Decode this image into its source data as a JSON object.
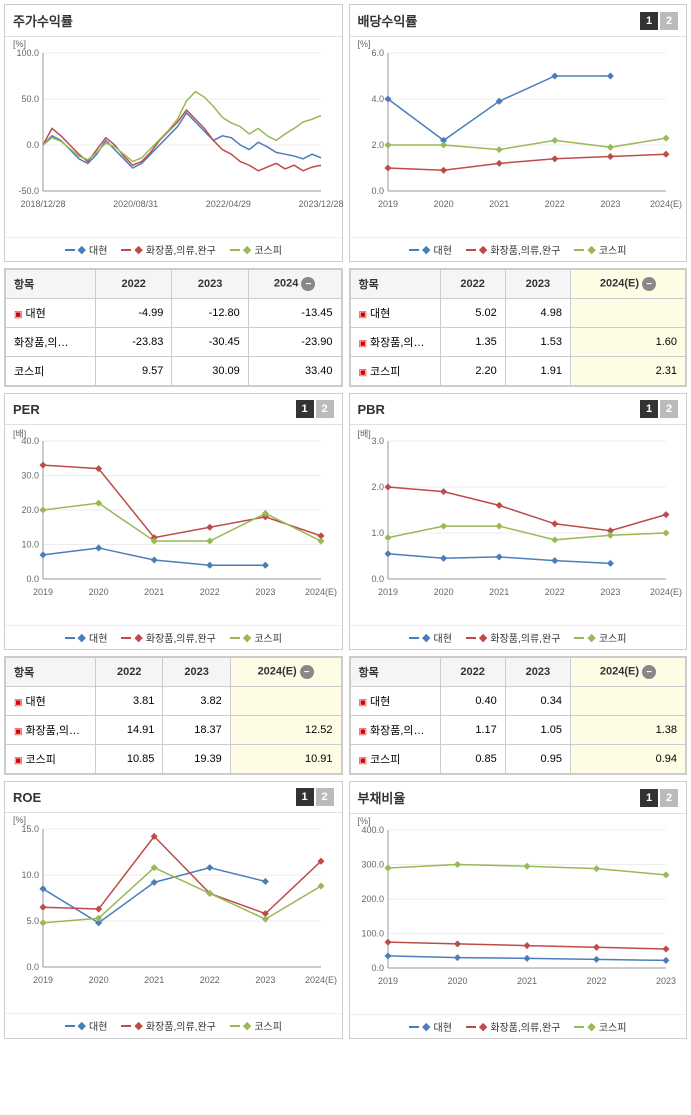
{
  "colors": {
    "s1": "#4a7ebb",
    "s2": "#be4b48",
    "s3": "#98b954",
    "grid": "#eeeeee",
    "axis": "#999999",
    "bg": "#ffffff",
    "est": "#fffce6"
  },
  "legend": [
    "대현",
    "화장품,의류,완구",
    "코스피"
  ],
  "years": [
    "2019",
    "2020",
    "2021",
    "2022",
    "2023",
    "2024(E)"
  ],
  "panels": {
    "p1": {
      "title": "주가수익률",
      "ylabel": "[%]",
      "ylim": [
        -50,
        100
      ],
      "yticks": [
        -50,
        0,
        50,
        100
      ],
      "xlabels": [
        "2018/12/28",
        "2020/08/31",
        "2022/04/29",
        "2023/12/28"
      ],
      "dense": true,
      "s1": [
        0,
        10,
        5,
        -5,
        -15,
        -20,
        -10,
        5,
        -5,
        -15,
        -25,
        -20,
        -10,
        0,
        10,
        20,
        35,
        25,
        15,
        5,
        10,
        8,
        0,
        -5,
        3,
        -2,
        -8,
        -10,
        -12,
        -15,
        -10,
        -14
      ],
      "s2": [
        0,
        18,
        10,
        0,
        -10,
        -18,
        -5,
        8,
        0,
        -12,
        -22,
        -18,
        -8,
        5,
        15,
        25,
        38,
        28,
        18,
        5,
        -5,
        -10,
        -18,
        -22,
        -28,
        -24,
        -20,
        -26,
        -22,
        -28,
        -24,
        -22
      ],
      "s3": [
        0,
        8,
        4,
        -4,
        -12,
        -16,
        -8,
        2,
        -2,
        -10,
        -18,
        -14,
        -4,
        6,
        16,
        28,
        48,
        58,
        52,
        42,
        30,
        24,
        20,
        12,
        18,
        10,
        5,
        12,
        18,
        25,
        28,
        32
      ]
    },
    "p2": {
      "title": "배당수익률",
      "toggles": true,
      "ylabel": "[%]",
      "ylim": [
        0,
        6
      ],
      "yticks": [
        0,
        2,
        4,
        6
      ],
      "s1": [
        4.0,
        2.2,
        3.9,
        5.0,
        5.0,
        null
      ],
      "s2": [
        1.0,
        0.9,
        1.2,
        1.4,
        1.5,
        1.6
      ],
      "s3": [
        2.0,
        2.0,
        1.8,
        2.2,
        1.9,
        2.3
      ]
    },
    "p3": {
      "title": "PER",
      "toggles": true,
      "ylabel": "[배]",
      "ylim": [
        0,
        40
      ],
      "yticks": [
        0,
        10,
        20,
        30,
        40
      ],
      "s1": [
        7,
        9,
        5.5,
        4,
        4,
        null
      ],
      "s2": [
        33,
        32,
        12,
        15,
        18,
        12.5
      ],
      "s3": [
        20,
        22,
        11,
        11,
        19,
        11
      ]
    },
    "p4": {
      "title": "PBR",
      "toggles": true,
      "ylabel": "[배]",
      "ylim": [
        0,
        3
      ],
      "yticks": [
        0,
        1,
        2,
        3
      ],
      "s1": [
        0.55,
        0.45,
        0.48,
        0.4,
        0.34,
        null
      ],
      "s2": [
        2.0,
        1.9,
        1.6,
        1.2,
        1.05,
        1.4
      ],
      "s3": [
        0.9,
        1.15,
        1.15,
        0.85,
        0.95,
        1.0
      ]
    },
    "p5": {
      "title": "ROE",
      "toggles": true,
      "ylabel": "[%]",
      "ylim": [
        0,
        15
      ],
      "yticks": [
        0,
        5,
        10,
        15
      ],
      "s1": [
        8.5,
        4.8,
        9.2,
        10.8,
        9.3,
        null
      ],
      "s2": [
        6.5,
        6.3,
        14.2,
        8.0,
        5.8,
        11.5
      ],
      "s3": [
        4.8,
        5.3,
        10.8,
        8.0,
        5.2,
        8.8
      ]
    },
    "p6": {
      "title": "부채비율",
      "toggles": true,
      "ylabel": "[%]",
      "ylim": [
        0,
        400
      ],
      "yticks": [
        0,
        100,
        200,
        300,
        400
      ],
      "years5": [
        "2019",
        "2020",
        "2021",
        "2022",
        "2023"
      ],
      "s1": [
        35,
        30,
        28,
        25,
        22
      ],
      "s2": [
        75,
        70,
        65,
        60,
        55
      ],
      "s3": [
        290,
        300,
        295,
        288,
        270
      ]
    }
  },
  "tables": {
    "t1": {
      "header": [
        "항목",
        "2022",
        "2023",
        "2024"
      ],
      "estcol": null,
      "collapse": 3,
      "rows": [
        {
          "exp": true,
          "label": "대현",
          "v": [
            "-4.99",
            "-12.80",
            "-13.45"
          ]
        },
        {
          "exp": false,
          "label": "화장품,의…",
          "v": [
            "-23.83",
            "-30.45",
            "-23.90"
          ]
        },
        {
          "exp": false,
          "label": "코스피",
          "v": [
            "9.57",
            "30.09",
            "33.40"
          ]
        }
      ]
    },
    "t2": {
      "header": [
        "항목",
        "2022",
        "2023",
        "2024(E)"
      ],
      "estcol": 3,
      "collapse": 3,
      "rows": [
        {
          "exp": true,
          "label": "대현",
          "v": [
            "5.02",
            "4.98",
            ""
          ]
        },
        {
          "exp": true,
          "label": "화장품,의…",
          "v": [
            "1.35",
            "1.53",
            "1.60"
          ]
        },
        {
          "exp": true,
          "label": "코스피",
          "v": [
            "2.20",
            "1.91",
            "2.31"
          ]
        }
      ]
    },
    "t3": {
      "header": [
        "항목",
        "2022",
        "2023",
        "2024(E)"
      ],
      "estcol": 3,
      "collapse": 3,
      "rows": [
        {
          "exp": true,
          "label": "대현",
          "v": [
            "3.81",
            "3.82",
            ""
          ]
        },
        {
          "exp": true,
          "label": "화장품,의…",
          "v": [
            "14.91",
            "18.37",
            "12.52"
          ]
        },
        {
          "exp": true,
          "label": "코스피",
          "v": [
            "10.85",
            "19.39",
            "10.91"
          ]
        }
      ]
    },
    "t4": {
      "header": [
        "항목",
        "2022",
        "2023",
        "2024(E)"
      ],
      "estcol": 3,
      "collapse": 3,
      "rows": [
        {
          "exp": true,
          "label": "대현",
          "v": [
            "0.40",
            "0.34",
            ""
          ]
        },
        {
          "exp": true,
          "label": "화장품,의…",
          "v": [
            "1.17",
            "1.05",
            "1.38"
          ]
        },
        {
          "exp": true,
          "label": "코스피",
          "v": [
            "0.85",
            "0.95",
            "0.94"
          ]
        }
      ]
    }
  }
}
